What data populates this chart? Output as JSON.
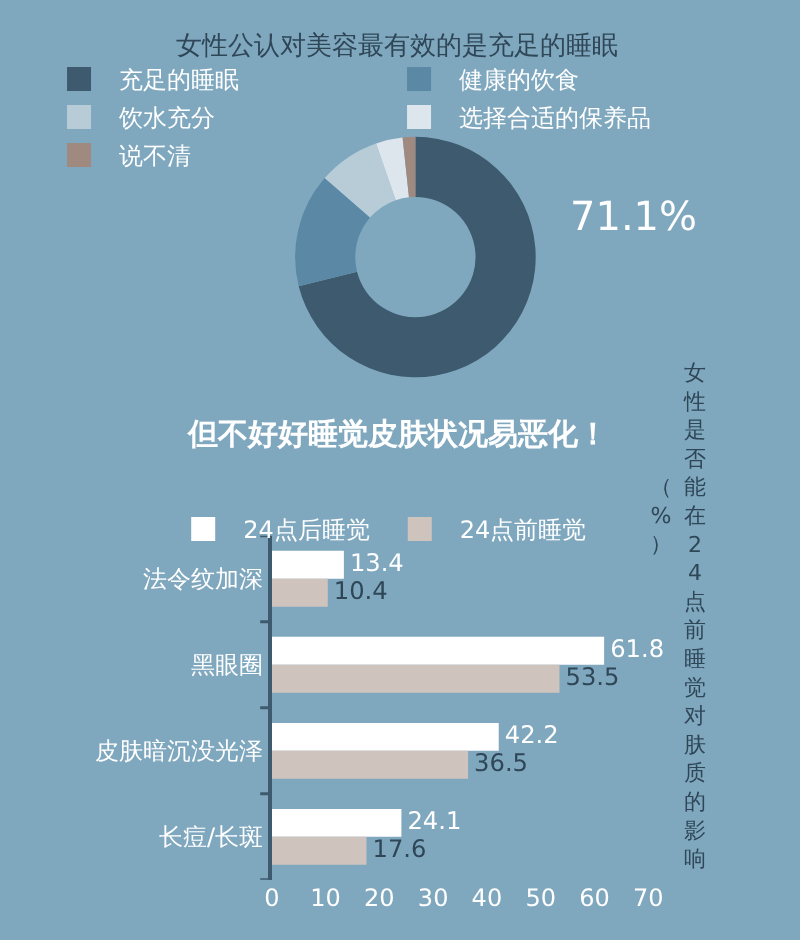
{
  "chart_data": [
    {
      "type": "donut",
      "title": "女性公认对美容最有效的是充足的睡眠",
      "categories": [
        "充足的睡眠",
        "健康的饮食",
        "饮水充分",
        "选择合适的保养品",
        "说不清"
      ],
      "values": [
        71.1,
        15.3,
        8.3,
        3.6,
        1.7
      ],
      "colors": [
        "#3d5a6e",
        "#5b88a5",
        "#b8ccd8",
        "#dce6ec",
        "#a08a80"
      ],
      "value_labels": [
        "71.1%",
        null,
        null,
        null,
        null
      ],
      "legend": "top"
    },
    {
      "type": "bar",
      "orientation": "horizontal",
      "title": "但不好好睡觉皮肤状况易恶化！",
      "annotations": [
        "女性是否能在24点前睡觉对肤质的影响",
        "（%）"
      ],
      "categories": [
        "法令纹加深",
        "黑眼圈",
        "皮肤暗沉没光泽",
        "长痘/长斑"
      ],
      "series": [
        {
          "name": "24点后睡觉",
          "color": "#ffffff",
          "values": [
            13.4,
            61.8,
            42.2,
            24.1
          ]
        },
        {
          "name": "24点前睡觉",
          "color": "#cfc3bd",
          "values": [
            10.4,
            53.5,
            36.5,
            17.6
          ]
        }
      ],
      "xlim": [
        0,
        70
      ],
      "xticks": [
        0,
        10,
        20,
        30,
        40,
        50,
        60,
        70
      ],
      "data_labels": true,
      "grid": false,
      "legend": "top left"
    }
  ]
}
